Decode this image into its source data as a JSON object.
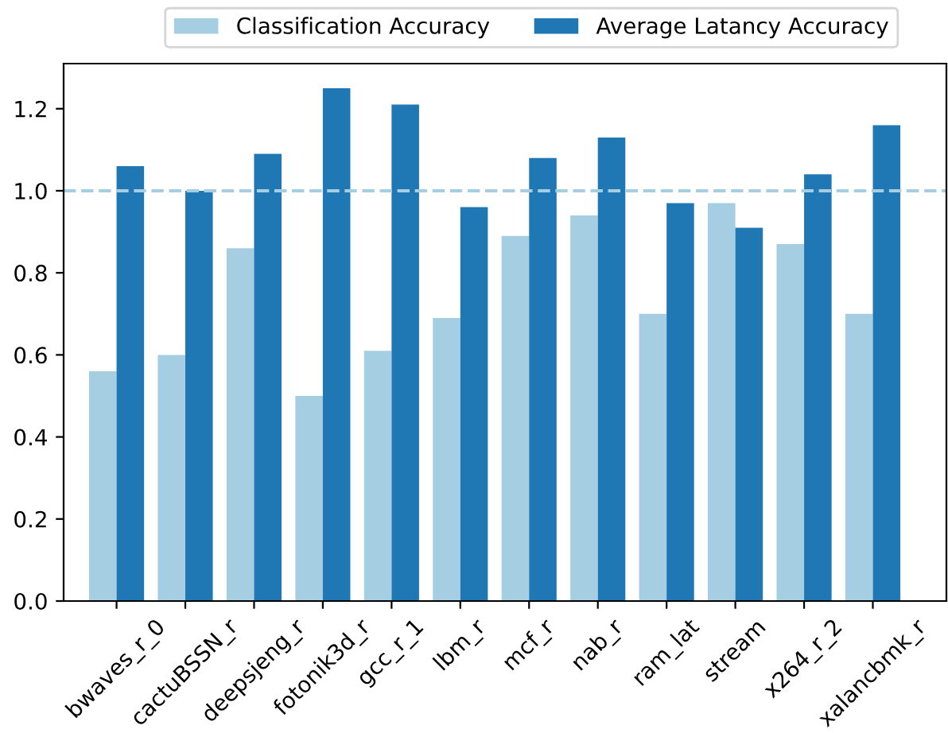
{
  "chart_data": {
    "type": "bar",
    "categories": [
      "bwaves_r_0",
      "cactuBSSN_r",
      "deepsjeng_r",
      "fotonik3d_r",
      "gcc_r_1",
      "lbm_r",
      "mcf_r",
      "nab_r",
      "ram_lat",
      "stream",
      "x264_r_2",
      "xalancbmk_r"
    ],
    "series": [
      {
        "name": "Classification Accuracy",
        "color": "#a6cee3",
        "values": [
          0.56,
          0.6,
          0.86,
          0.5,
          0.61,
          0.69,
          0.89,
          0.94,
          0.7,
          0.97,
          0.87,
          0.7
        ]
      },
      {
        "name": "Average Latancy Accuracy",
        "color": "#1f78b4",
        "values": [
          1.06,
          1.0,
          1.09,
          1.25,
          1.21,
          0.96,
          1.08,
          1.13,
          0.97,
          0.91,
          1.04,
          1.16
        ]
      }
    ],
    "ylim": [
      0,
      1.31
    ],
    "yticks": [
      {
        "value": 0,
        "label": "0.0"
      },
      0.2,
      0.4,
      0.6,
      0.8,
      {
        "value": 1,
        "label": "1.0"
      },
      1.2
    ],
    "ref_lines": [
      {
        "axis": "y",
        "value": 1.0,
        "color": "#a6cee3",
        "line_style": "dashed"
      }
    ],
    "legend": "top",
    "grid": false
  }
}
